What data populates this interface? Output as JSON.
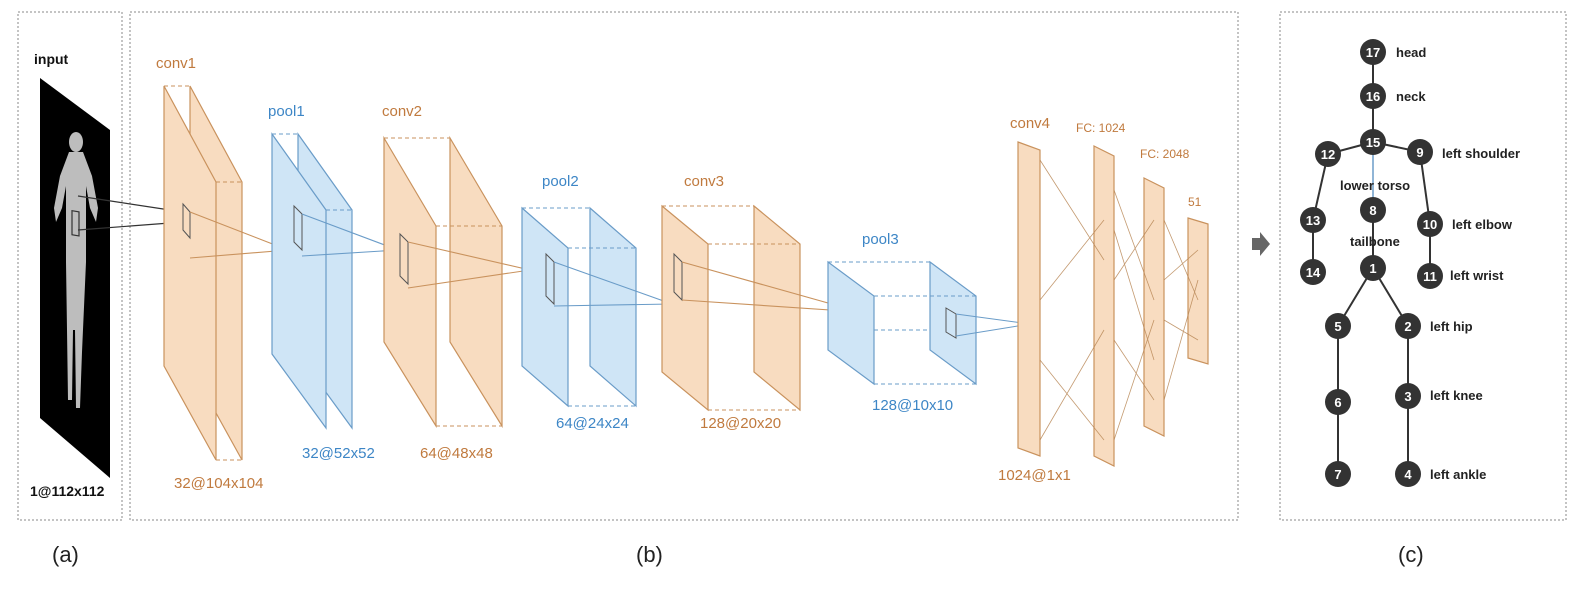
{
  "panel_a": {
    "title": "input",
    "dims": "1@112x112",
    "caption": "(a)"
  },
  "panel_b": {
    "caption": "(b)",
    "layers": {
      "conv1": {
        "name": "conv1",
        "dims": "32@104x104"
      },
      "pool1": {
        "name": "pool1",
        "dims": "32@52x52"
      },
      "conv2": {
        "name": "conv2",
        "dims": "64@48x48"
      },
      "pool2": {
        "name": "pool2",
        "dims": "64@24x24"
      },
      "conv3": {
        "name": "conv3",
        "dims": "128@20x20"
      },
      "pool3": {
        "name": "pool3",
        "dims": "128@10x10"
      },
      "conv4": {
        "name": "conv4",
        "dims": "1024@1x1"
      },
      "fc1": {
        "name": "FC: 1024"
      },
      "fc2": {
        "name": "FC: 2048"
      },
      "out": {
        "name": "51"
      }
    }
  },
  "panel_c": {
    "caption": "(c)",
    "nodes": [
      "17",
      "16",
      "15",
      "12",
      "9",
      "8",
      "13",
      "10",
      "1",
      "14",
      "11",
      "5",
      "2",
      "6",
      "3",
      "7",
      "4"
    ],
    "labels": {
      "head": "head",
      "neck": "neck",
      "left_shoulder": "left shoulder",
      "lower_torso": "lower torso",
      "left_elbow": "left elbow",
      "tailbone": "tailbone",
      "left_wrist": "left wrist",
      "left_hip": "left hip",
      "left_knee": "left knee",
      "left_ankle": "left ankle"
    }
  },
  "colors": {
    "conv_fill": "#f8dcc0",
    "conv_stroke": "#c9925d",
    "pool_fill": "#cfe5f6",
    "pool_stroke": "#6a9cc8",
    "node": "#333333",
    "border": "#888888"
  }
}
